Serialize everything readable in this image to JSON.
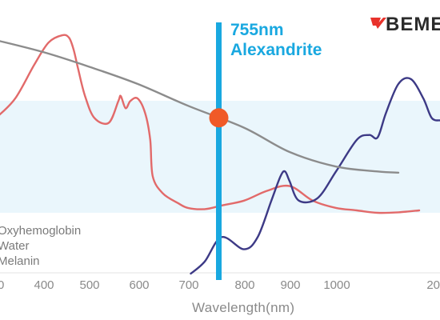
{
  "brand": {
    "logo_text": "BEME",
    "mark_color": "#e8322b"
  },
  "chart_data": {
    "type": "line",
    "title": "",
    "xlabel": "Wavelength(nm)",
    "ylabel": "",
    "x_ticks": [
      "0",
      "400",
      "500",
      "600",
      "700",
      "800",
      "900",
      "1000",
      "20"
    ],
    "legend": [
      "Oxyhemoglobin",
      "Water",
      "Melanin"
    ],
    "legend_placement": "bottom-left",
    "grid": false,
    "marker": {
      "wavelength": 755,
      "label_line1": "755nm",
      "label_line2": "Alexandrite",
      "color": "#19a8e0",
      "dot_color": "#f05a28"
    },
    "series": [
      {
        "key": "oxyhemoglobin",
        "color": "#e26a6a",
        "x": [
          300,
          340,
          380,
          410,
          440,
          455,
          465,
          475,
          490,
          510,
          540,
          560,
          565,
          575,
          585,
          600,
          615,
          625,
          630,
          650,
          680,
          700,
          730,
          760,
          800,
          850,
          900,
          950,
          1000,
          1050,
          1100,
          1150,
          1200
        ],
        "y": [
          0.64,
          0.72,
          0.86,
          0.95,
          0.98,
          0.97,
          0.92,
          0.84,
          0.73,
          0.64,
          0.62,
          0.71,
          0.73,
          0.68,
          0.71,
          0.72,
          0.66,
          0.55,
          0.4,
          0.33,
          0.29,
          0.27,
          0.265,
          0.28,
          0.3,
          0.34,
          0.36,
          0.3,
          0.27,
          0.26,
          0.25,
          0.252,
          0.26
        ]
      },
      {
        "key": "water",
        "color": "#3d3a86",
        "x": [
          705,
          730,
          760,
          800,
          830,
          860,
          880,
          890,
          900,
          920,
          960,
          1000,
          1050,
          1080,
          1100,
          1120,
          1150,
          1180,
          1210,
          1230,
          1250
        ],
        "y": [
          0.0,
          0.05,
          0.15,
          0.1,
          0.15,
          0.3,
          0.4,
          0.42,
          0.38,
          0.3,
          0.31,
          0.42,
          0.55,
          0.57,
          0.56,
          0.66,
          0.78,
          0.8,
          0.72,
          0.64,
          0.63
        ]
      },
      {
        "key": "melanin",
        "color": "#8c8c8c",
        "x": [
          300,
          400,
          500,
          600,
          700,
          800,
          900,
          1000,
          1100,
          1150
        ],
        "y": [
          0.96,
          0.91,
          0.85,
          0.78,
          0.69,
          0.6,
          0.5,
          0.44,
          0.42,
          0.415
        ]
      }
    ]
  }
}
